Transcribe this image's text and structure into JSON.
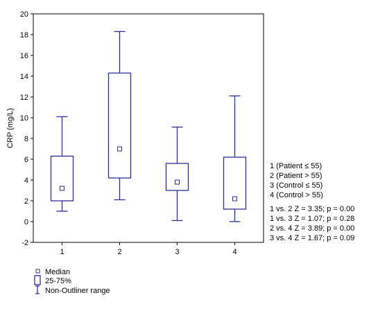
{
  "chart_data": {
    "type": "boxplot",
    "ylabel": "CRP (mg/L)",
    "xlabel": "",
    "ylim": [
      -2,
      20
    ],
    "y_ticks": [
      "-2",
      "0",
      "2",
      "4",
      "6",
      "8",
      "10",
      "12",
      "14",
      "16",
      "18",
      "20"
    ],
    "categories": [
      "1",
      "2",
      "3",
      "4"
    ],
    "boxes": [
      {
        "category": "1",
        "min": 1.0,
        "q1": 2.0,
        "median": 3.2,
        "q3": 6.3,
        "max": 10.1
      },
      {
        "category": "2",
        "min": 2.1,
        "q1": 4.2,
        "median": 7.0,
        "q3": 14.3,
        "max": 18.3
      },
      {
        "category": "3",
        "min": 0.1,
        "q1": 3.0,
        "median": 3.8,
        "q3": 5.6,
        "max": 9.1
      },
      {
        "category": "4",
        "min": 0.0,
        "q1": 1.2,
        "median": 2.2,
        "q3": 6.2,
        "max": 12.1
      }
    ],
    "group_labels": [
      "1 (Patient ≤ 55)",
      "2 (Patient > 55)",
      "3 (Control ≤ 55)",
      "4 (Control > 55)"
    ],
    "comparisons": [
      "1 vs. 2 Z = 3.35; p = 0.00",
      "1 vs. 3 Z = 1.07; p = 0.28",
      "2 vs. 4 Z = 3.89; p = 0.00",
      "3 vs. 4 Z = 1.67; p = 0.09"
    ],
    "legend": {
      "median": "Median",
      "box": "25-75%",
      "whisker": "Non-Outliner range"
    },
    "grid": false,
    "colors": {
      "series": "#2c2c9a",
      "axis": "#000000"
    }
  }
}
